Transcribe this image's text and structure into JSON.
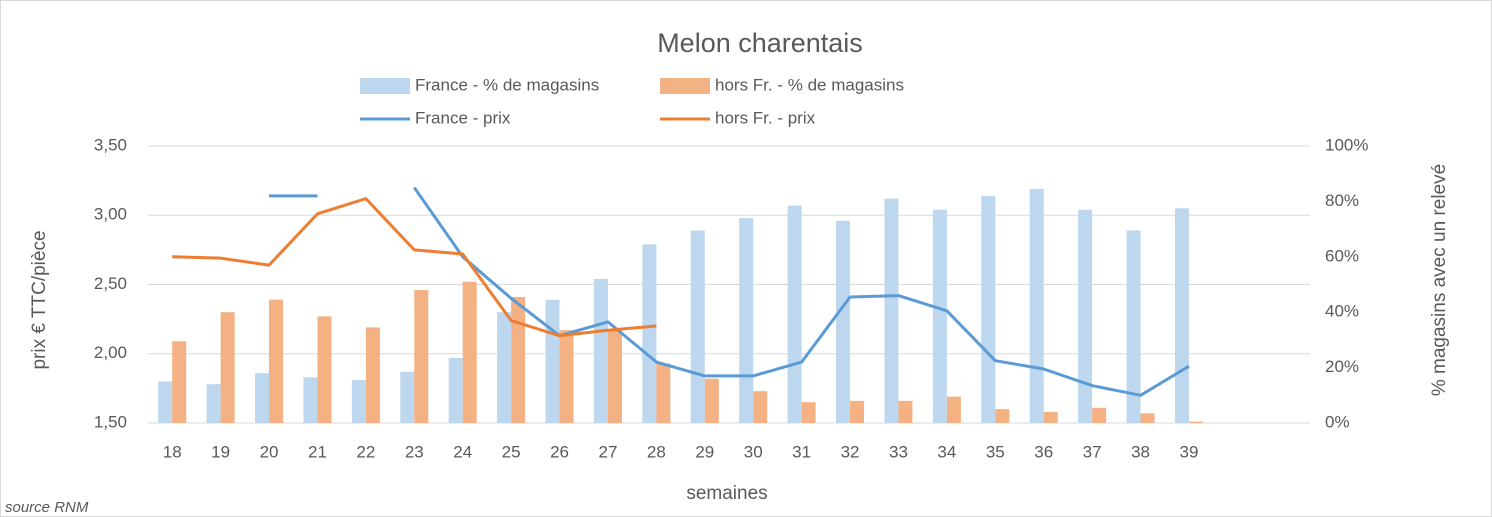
{
  "chart_data": {
    "type": "bar",
    "title": "Melon charentais",
    "ylabel": "prix € TTC/pièce",
    "y2label": "% magasins avec un relevé",
    "xlabel": "semaines",
    "source": "source RNM",
    "categories": [
      "18",
      "19",
      "20",
      "21",
      "22",
      "23",
      "24",
      "25",
      "26",
      "27",
      "28",
      "29",
      "30",
      "31",
      "32",
      "33",
      "34",
      "35",
      "36",
      "37",
      "38",
      "39",
      null,
      null
    ],
    "ylim": [
      1.5,
      3.5
    ],
    "yticks": [
      {
        "value": 1.5,
        "label": "1,50"
      },
      {
        "value": 2.0,
        "label": "2,00"
      },
      {
        "value": 2.5,
        "label": "2,50"
      },
      {
        "value": 3.0,
        "label": "3,00"
      },
      {
        "value": 3.5,
        "label": "3,50"
      }
    ],
    "y2lim": [
      0,
      100
    ],
    "y2ticks": [
      {
        "value": 0,
        "label": "0%"
      },
      {
        "value": 20,
        "label": "20%"
      },
      {
        "value": 40,
        "label": "40%"
      },
      {
        "value": 60,
        "label": "60%"
      },
      {
        "value": 80,
        "label": "80%"
      },
      {
        "value": 100,
        "label": "100%"
      }
    ],
    "grid": true,
    "series": [
      {
        "name": "France - % de magasins",
        "type": "bar",
        "axis": "y2",
        "color": "#bdd7ee",
        "values": [
          15,
          14,
          18,
          16.5,
          15.5,
          18.5,
          23.5,
          40,
          44.5,
          52,
          64.5,
          69.5,
          74,
          78.5,
          73,
          81,
          77,
          82,
          84.5,
          77,
          69.5,
          77.5,
          null,
          null
        ]
      },
      {
        "name": "hors Fr. - % de magasins",
        "type": "bar",
        "axis": "y2",
        "color": "#f4b183",
        "values": [
          29.5,
          40,
          44.5,
          38.5,
          34.5,
          48,
          51,
          45.5,
          33.5,
          33.5,
          21.5,
          16,
          11.5,
          7.5,
          8,
          8,
          9.5,
          5,
          4,
          5.5,
          3.5,
          0.5,
          null,
          null
        ]
      },
      {
        "name": "France - prix",
        "type": "line",
        "color": "#5b9bd5",
        "values": [
          null,
          null,
          3.14,
          3.14,
          null,
          3.2,
          2.7,
          2.4,
          2.13,
          2.23,
          1.94,
          1.84,
          1.84,
          1.94,
          2.41,
          2.42,
          2.31,
          1.95,
          1.89,
          1.77,
          1.7,
          1.91,
          null,
          null
        ]
      },
      {
        "name": "hors Fr. - prix",
        "type": "line",
        "color": "#ed7d31",
        "values": [
          2.7,
          2.69,
          2.64,
          3.01,
          3.12,
          2.75,
          2.72,
          2.24,
          2.13,
          2.17,
          2.2,
          null,
          null,
          null,
          null,
          null,
          null,
          null,
          null,
          null,
          null,
          null,
          null,
          null
        ]
      }
    ]
  }
}
